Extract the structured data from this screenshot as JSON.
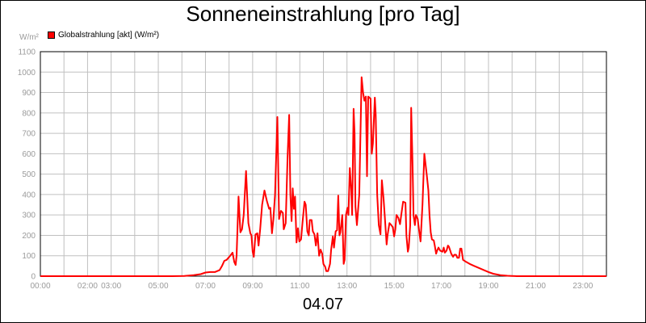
{
  "chart_data": {
    "type": "line",
    "title": "Sonneneinstrahlung [pro Tag]",
    "ylabel": "W/m²",
    "xlabel": "04.07",
    "xlim": [
      0,
      24
    ],
    "ylim": [
      0,
      1100
    ],
    "grid": true,
    "legend_position": "top-left",
    "colors": {
      "series": "#ff0000",
      "grid": "#c0c0c0",
      "tick_text": "#9a9a9a"
    },
    "yticks": [
      0,
      100,
      200,
      300,
      400,
      500,
      600,
      700,
      800,
      900,
      1000,
      1100
    ],
    "xticks": [
      {
        "x": 0,
        "label": "00:00"
      },
      {
        "x": 2,
        "label": "02:00"
      },
      {
        "x": 3,
        "label": "03:00"
      },
      {
        "x": 5,
        "label": "05:00"
      },
      {
        "x": 7,
        "label": "07:00"
      },
      {
        "x": 9,
        "label": "09:00"
      },
      {
        "x": 11,
        "label": "11:00"
      },
      {
        "x": 13,
        "label": "13:00"
      },
      {
        "x": 15,
        "label": "15:00"
      },
      {
        "x": 17,
        "label": "17:00"
      },
      {
        "x": 19,
        "label": "19:00"
      },
      {
        "x": 21,
        "label": "21:00"
      },
      {
        "x": 23,
        "label": "23:00"
      }
    ],
    "series": [
      {
        "name": "Globalstrahlung [akt] (W/m²)",
        "points": [
          [
            0,
            0
          ],
          [
            5.6,
            0
          ],
          [
            6.1,
            1
          ],
          [
            6.5,
            5
          ],
          [
            6.8,
            10
          ],
          [
            7.0,
            18
          ],
          [
            7.2,
            20
          ],
          [
            7.4,
            20
          ],
          [
            7.6,
            30
          ],
          [
            7.7,
            50
          ],
          [
            7.8,
            75
          ],
          [
            7.9,
            80
          ],
          [
            8.05,
            100
          ],
          [
            8.15,
            115
          ],
          [
            8.22,
            70
          ],
          [
            8.28,
            55
          ],
          [
            8.32,
            100
          ],
          [
            8.4,
            390
          ],
          [
            8.48,
            215
          ],
          [
            8.55,
            230
          ],
          [
            8.62,
            300
          ],
          [
            8.72,
            515
          ],
          [
            8.82,
            260
          ],
          [
            8.9,
            210
          ],
          [
            8.95,
            200
          ],
          [
            9.0,
            120
          ],
          [
            9.05,
            95
          ],
          [
            9.12,
            205
          ],
          [
            9.2,
            210
          ],
          [
            9.25,
            150
          ],
          [
            9.32,
            230
          ],
          [
            9.4,
            350
          ],
          [
            9.5,
            420
          ],
          [
            9.6,
            370
          ],
          [
            9.7,
            330
          ],
          [
            9.75,
            335
          ],
          [
            9.82,
            210
          ],
          [
            9.88,
            280
          ],
          [
            9.95,
            400
          ],
          [
            10.05,
            780
          ],
          [
            10.12,
            280
          ],
          [
            10.2,
            320
          ],
          [
            10.28,
            310
          ],
          [
            10.32,
            230
          ],
          [
            10.4,
            260
          ],
          [
            10.48,
            580
          ],
          [
            10.55,
            790
          ],
          [
            10.6,
            400
          ],
          [
            10.65,
            270
          ],
          [
            10.7,
            430
          ],
          [
            10.75,
            330
          ],
          [
            10.8,
            390
          ],
          [
            10.86,
            165
          ],
          [
            10.92,
            235
          ],
          [
            10.98,
            170
          ],
          [
            11.05,
            180
          ],
          [
            11.12,
            270
          ],
          [
            11.2,
            365
          ],
          [
            11.25,
            350
          ],
          [
            11.32,
            220
          ],
          [
            11.38,
            200
          ],
          [
            11.42,
            275
          ],
          [
            11.5,
            275
          ],
          [
            11.55,
            220
          ],
          [
            11.62,
            205
          ],
          [
            11.68,
            150
          ],
          [
            11.75,
            210
          ],
          [
            11.82,
            100
          ],
          [
            11.88,
            130
          ],
          [
            11.95,
            110
          ],
          [
            12.0,
            60
          ],
          [
            12.08,
            45
          ],
          [
            12.12,
            25
          ],
          [
            12.2,
            25
          ],
          [
            12.28,
            60
          ],
          [
            12.33,
            130
          ],
          [
            12.4,
            195
          ],
          [
            12.45,
            140
          ],
          [
            12.52,
            220
          ],
          [
            12.58,
            225
          ],
          [
            12.63,
            395
          ],
          [
            12.68,
            200
          ],
          [
            12.72,
            215
          ],
          [
            12.8,
            300
          ],
          [
            12.86,
            60
          ],
          [
            12.9,
            80
          ],
          [
            12.96,
            300
          ],
          [
            13.02,
            335
          ],
          [
            13.06,
            300
          ],
          [
            13.12,
            530
          ],
          [
            13.18,
            420
          ],
          [
            13.22,
            300
          ],
          [
            13.28,
            820
          ],
          [
            13.32,
            700
          ],
          [
            13.36,
            340
          ],
          [
            13.42,
            250
          ],
          [
            13.52,
            400
          ],
          [
            13.62,
            975
          ],
          [
            13.68,
            900
          ],
          [
            13.74,
            860
          ],
          [
            13.8,
            880
          ],
          [
            13.85,
            490
          ],
          [
            13.9,
            880
          ],
          [
            14.0,
            870
          ],
          [
            14.05,
            600
          ],
          [
            14.1,
            650
          ],
          [
            14.18,
            875
          ],
          [
            14.22,
            790
          ],
          [
            14.28,
            400
          ],
          [
            14.35,
            250
          ],
          [
            14.42,
            205
          ],
          [
            14.48,
            470
          ],
          [
            14.55,
            380
          ],
          [
            14.6,
            300
          ],
          [
            14.68,
            155
          ],
          [
            14.72,
            200
          ],
          [
            14.8,
            260
          ],
          [
            14.88,
            250
          ],
          [
            14.94,
            240
          ],
          [
            15.0,
            195
          ],
          [
            15.05,
            230
          ],
          [
            15.1,
            300
          ],
          [
            15.18,
            285
          ],
          [
            15.25,
            255
          ],
          [
            15.3,
            300
          ],
          [
            15.38,
            365
          ],
          [
            15.48,
            360
          ],
          [
            15.52,
            200
          ],
          [
            15.58,
            120
          ],
          [
            15.62,
            140
          ],
          [
            15.68,
            250
          ],
          [
            15.72,
            825
          ],
          [
            15.78,
            550
          ],
          [
            15.82,
            300
          ],
          [
            15.88,
            250
          ],
          [
            15.92,
            300
          ],
          [
            16.0,
            280
          ],
          [
            16.05,
            230
          ],
          [
            16.12,
            170
          ],
          [
            16.2,
            350
          ],
          [
            16.28,
            600
          ],
          [
            16.38,
            500
          ],
          [
            16.45,
            420
          ],
          [
            16.5,
            300
          ],
          [
            16.55,
            215
          ],
          [
            16.6,
            180
          ],
          [
            16.68,
            175
          ],
          [
            16.72,
            150
          ],
          [
            16.78,
            110
          ],
          [
            16.82,
            125
          ],
          [
            16.88,
            140
          ],
          [
            16.95,
            125
          ],
          [
            17.05,
            120
          ],
          [
            17.1,
            140
          ],
          [
            17.15,
            115
          ],
          [
            17.22,
            125
          ],
          [
            17.28,
            150
          ],
          [
            17.32,
            145
          ],
          [
            17.38,
            125
          ],
          [
            17.42,
            110
          ],
          [
            17.5,
            95
          ],
          [
            17.55,
            105
          ],
          [
            17.62,
            105
          ],
          [
            17.68,
            90
          ],
          [
            17.75,
            90
          ],
          [
            17.8,
            135
          ],
          [
            17.85,
            135
          ],
          [
            17.92,
            80
          ],
          [
            18.05,
            70
          ],
          [
            18.2,
            60
          ],
          [
            18.4,
            50
          ],
          [
            18.6,
            40
          ],
          [
            18.8,
            30
          ],
          [
            19.0,
            20
          ],
          [
            19.2,
            12
          ],
          [
            19.5,
            5
          ],
          [
            19.8,
            2
          ],
          [
            20.2,
            0
          ],
          [
            24,
            0
          ]
        ]
      }
    ]
  }
}
